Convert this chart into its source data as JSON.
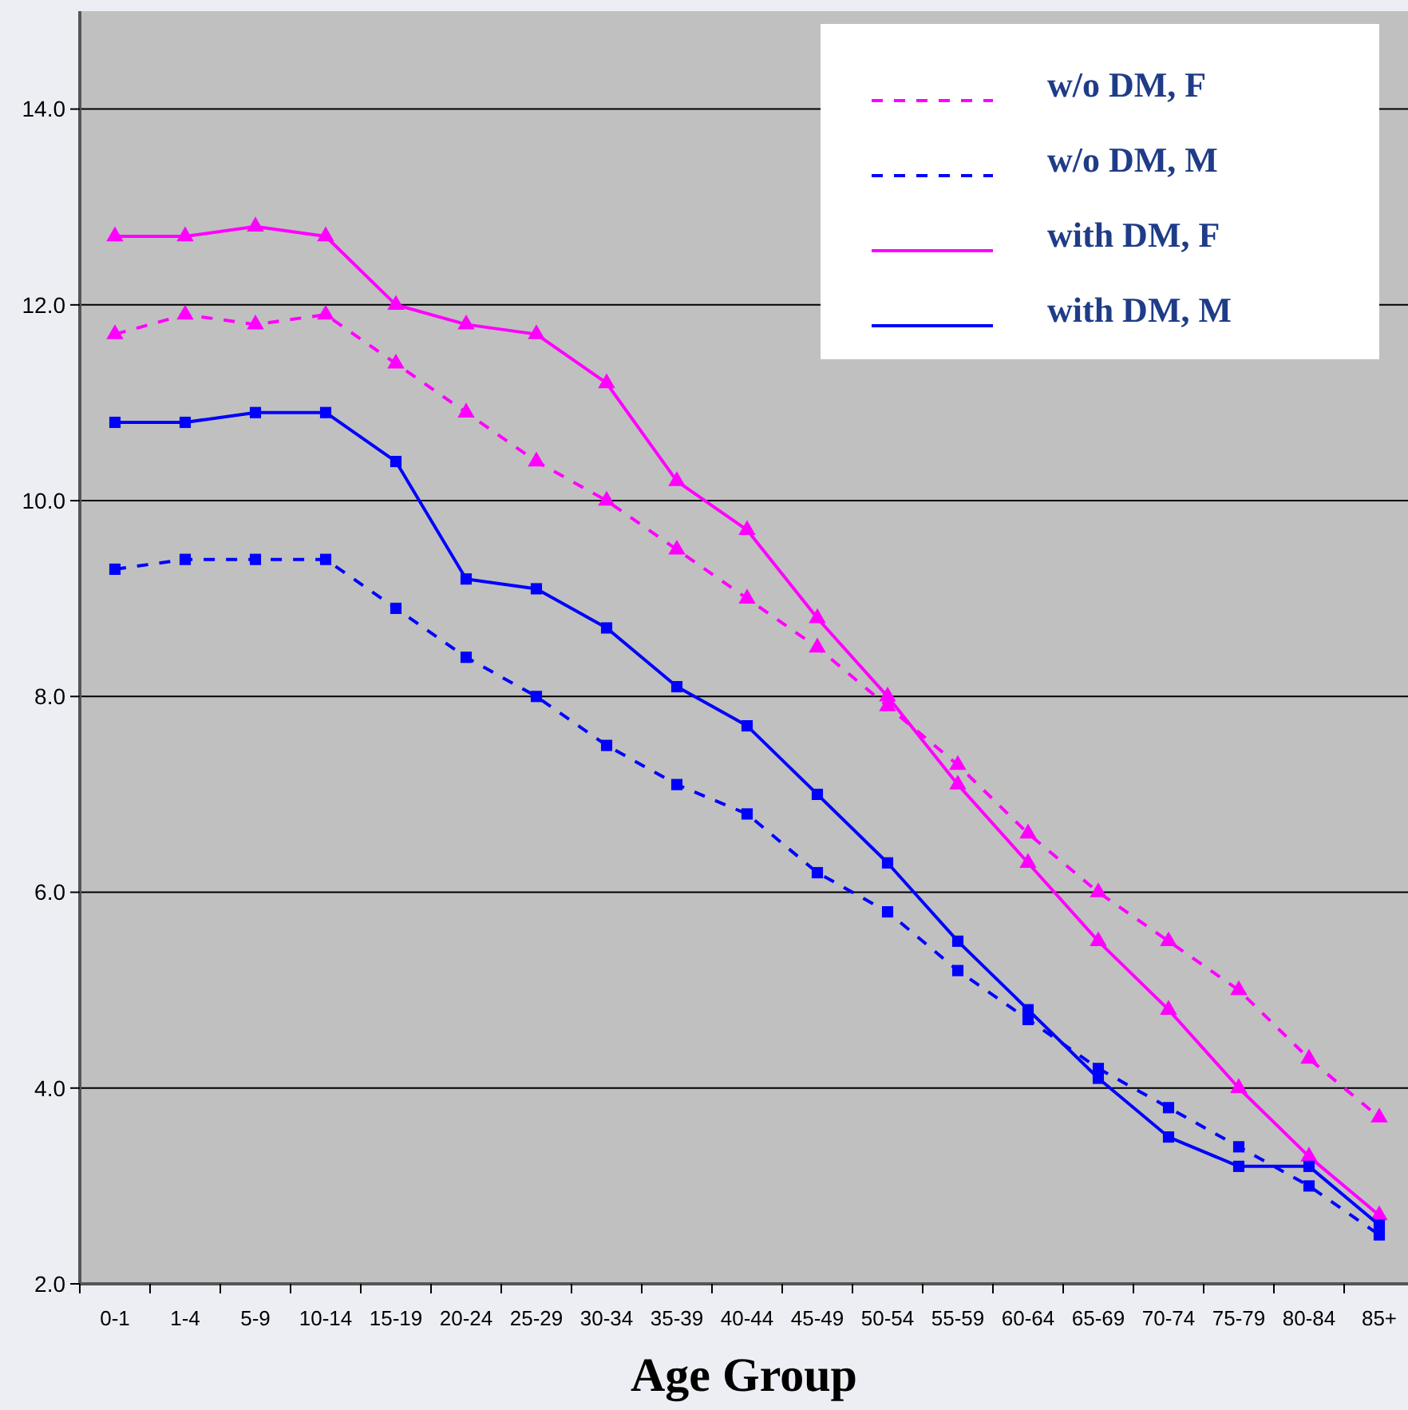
{
  "chart_data": {
    "type": "line",
    "xlabel": "Age Group",
    "categories": [
      "0-1",
      "1-4",
      "5-9",
      "10-14",
      "15-19",
      "20-24",
      "25-29",
      "30-34",
      "35-39",
      "40-44",
      "45-49",
      "50-54",
      "55-59",
      "60-64",
      "65-69",
      "70-74",
      "75-79",
      "80-84",
      "85+"
    ],
    "ylim": [
      2,
      15
    ],
    "yticks": [
      {
        "value": 2,
        "label": "2.0"
      },
      {
        "value": 4,
        "label": "4.0"
      },
      {
        "value": 6,
        "label": "6.0"
      },
      {
        "value": 8,
        "label": "8.0"
      },
      {
        "value": 10,
        "label": "10.0"
      },
      {
        "value": 12,
        "label": "12.0"
      },
      {
        "value": 14,
        "label": "14.0"
      }
    ],
    "grid": "y",
    "legend": "top right",
    "series": [
      {
        "name": "w/o DM, F",
        "color": "#ff00ff",
        "line_style": "dashed",
        "marker": "triangle",
        "values": [
          11.7,
          11.9,
          11.8,
          11.9,
          11.4,
          10.9,
          10.4,
          10.0,
          9.5,
          9.0,
          8.5,
          7.9,
          7.3,
          6.6,
          6.0,
          5.5,
          5.0,
          4.3,
          3.7
        ]
      },
      {
        "name": "w/o DM, M",
        "color": "#0000ff",
        "line_style": "dashed",
        "marker": "square",
        "values": [
          9.3,
          9.4,
          9.4,
          9.4,
          8.9,
          8.4,
          8.0,
          7.5,
          7.1,
          6.8,
          6.2,
          5.8,
          5.2,
          4.7,
          4.2,
          3.8,
          3.4,
          3.0,
          2.5
        ]
      },
      {
        "name": "with DM, F",
        "color": "#ff00ff",
        "line_style": "solid",
        "marker": "triangle",
        "values": [
          12.7,
          12.7,
          12.8,
          12.7,
          12.0,
          11.8,
          11.7,
          11.2,
          10.2,
          9.7,
          8.8,
          8.0,
          7.1,
          6.3,
          5.5,
          4.8,
          4.0,
          3.3,
          2.7
        ]
      },
      {
        "name": "with DM, M",
        "color": "#0000ff",
        "line_style": "solid",
        "marker": "square",
        "values": [
          10.8,
          10.8,
          10.9,
          10.9,
          10.4,
          9.2,
          9.1,
          8.7,
          8.1,
          7.7,
          7.0,
          6.3,
          5.5,
          4.8,
          4.1,
          3.5,
          3.2,
          3.2,
          2.6
        ]
      }
    ]
  }
}
